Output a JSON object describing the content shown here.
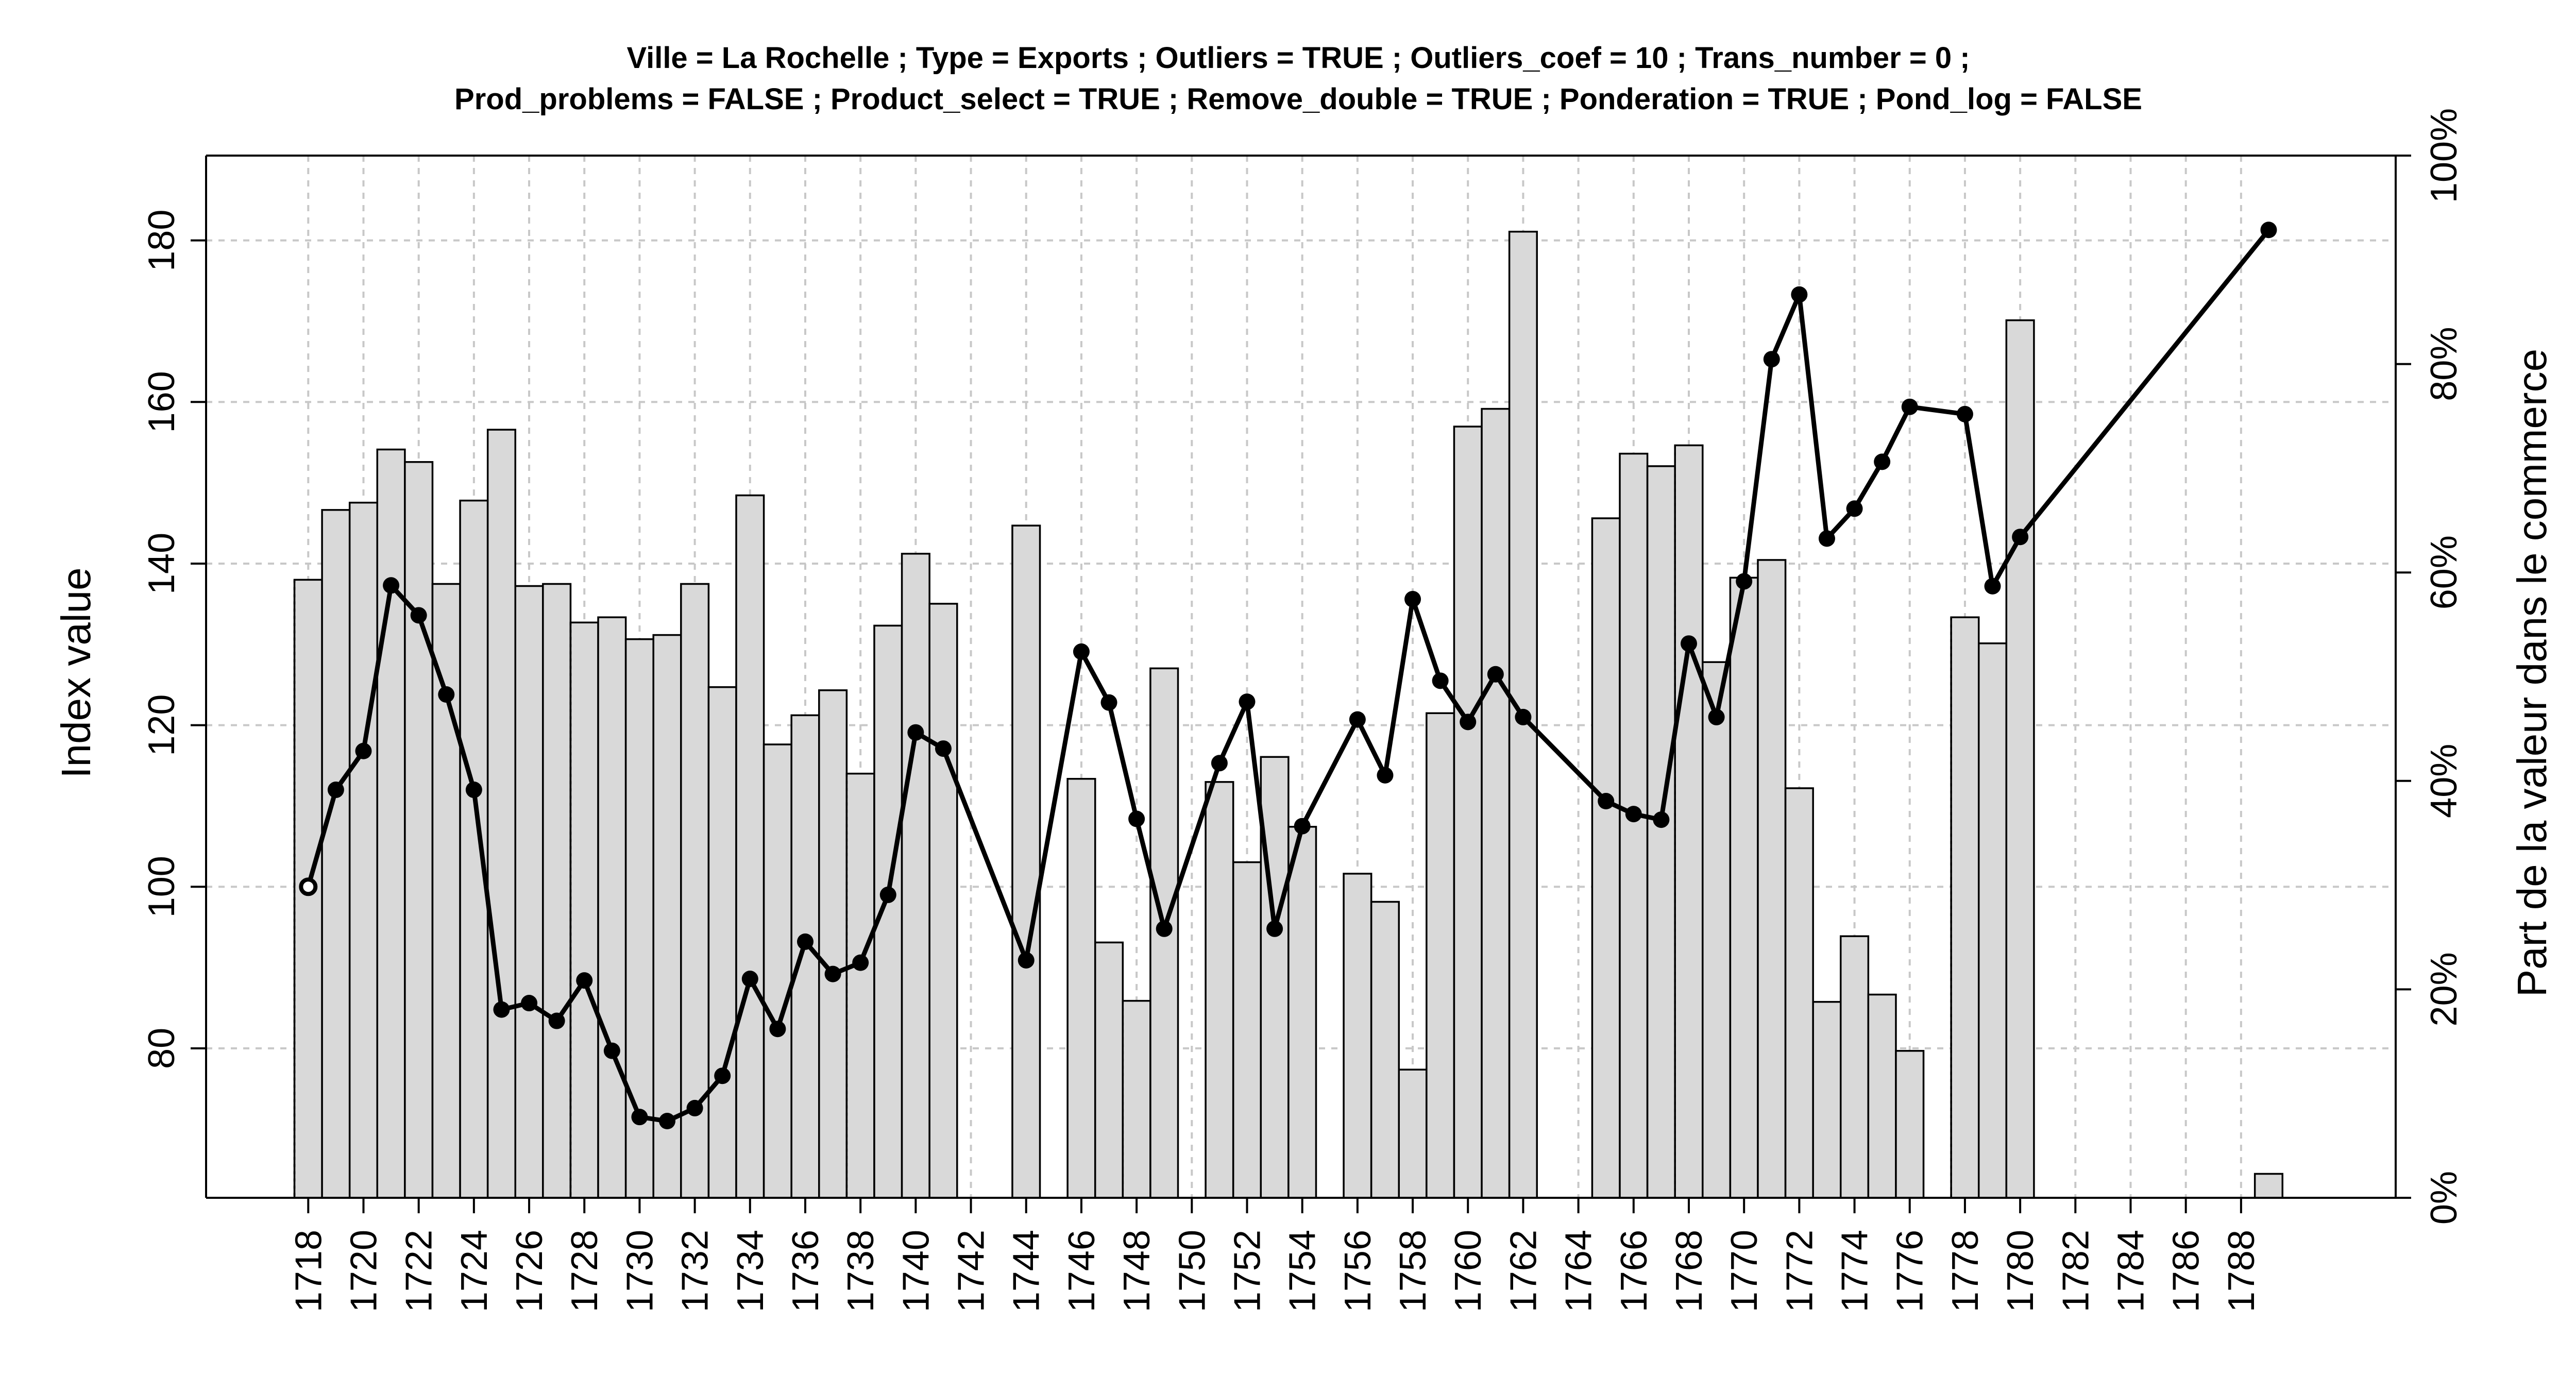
{
  "chart_data": {
    "type": "bar",
    "title_line1": "Ville = La Rochelle ; Type = Exports ; Outliers = TRUE ; Outliers_coef = 10 ; Trans_number = 0 ;",
    "title_line2": "Prod_problems = FALSE ; Product_select = TRUE ; Remove_double = TRUE ; Ponderation = TRUE ; Pond_log = FALSE",
    "xlabel": "",
    "ylabel": "Index value",
    "y2label": "Part de la valeur dans le commerce",
    "ylim": [
      61.5,
      190.5
    ],
    "y2lim": [
      0,
      100
    ],
    "xlim": [
      1714.3,
      1793.6
    ],
    "yticks": [
      80,
      100,
      120,
      140,
      160,
      180
    ],
    "y2ticks": [
      "0%",
      "20%",
      "40%",
      "60%",
      "80%",
      "100%"
    ],
    "xticks": [
      "1718",
      "1720",
      "1722",
      "1724",
      "1726",
      "1728",
      "1730",
      "1732",
      "1734",
      "1736",
      "1738",
      "1740",
      "1742",
      "1744",
      "1746",
      "1748",
      "1750",
      "1752",
      "1754",
      "1756",
      "1758",
      "1760",
      "1762",
      "1764",
      "1766",
      "1768",
      "1770",
      "1772",
      "1774",
      "1776",
      "1778",
      "1780",
      "1782",
      "1784",
      "1786",
      "1788"
    ],
    "grid": true,
    "series": [
      {
        "axis": "right",
        "style": "bar",
        "unit": "%",
        "points": [
          {
            "year": 1718,
            "value": 59.3
          },
          {
            "year": 1719,
            "value": 66.0
          },
          {
            "year": 1720,
            "value": 66.7
          },
          {
            "year": 1721,
            "value": 71.8
          },
          {
            "year": 1722,
            "value": 70.6
          },
          {
            "year": 1723,
            "value": 58.9
          },
          {
            "year": 1724,
            "value": 66.9
          },
          {
            "year": 1725,
            "value": 73.7
          },
          {
            "year": 1726,
            "value": 58.7
          },
          {
            "year": 1727,
            "value": 58.9
          },
          {
            "year": 1728,
            "value": 55.2
          },
          {
            "year": 1729,
            "value": 55.7
          },
          {
            "year": 1730,
            "value": 53.6
          },
          {
            "year": 1731,
            "value": 54.0
          },
          {
            "year": 1732,
            "value": 58.9
          },
          {
            "year": 1733,
            "value": 49.0
          },
          {
            "year": 1734,
            "value": 67.4
          },
          {
            "year": 1735,
            "value": 43.5
          },
          {
            "year": 1736,
            "value": 46.3
          },
          {
            "year": 1737,
            "value": 48.7
          },
          {
            "year": 1738,
            "value": 40.7
          },
          {
            "year": 1739,
            "value": 54.9
          },
          {
            "year": 1740,
            "value": 61.8
          },
          {
            "year": 1741,
            "value": 57.0
          },
          {
            "year": 1744,
            "value": 64.5
          },
          {
            "year": 1746,
            "value": 40.2
          },
          {
            "year": 1747,
            "value": 24.5
          },
          {
            "year": 1748,
            "value": 18.9
          },
          {
            "year": 1749,
            "value": 50.8
          },
          {
            "year": 1751,
            "value": 39.9
          },
          {
            "year": 1752,
            "value": 32.2
          },
          {
            "year": 1753,
            "value": 42.3
          },
          {
            "year": 1754,
            "value": 35.6
          },
          {
            "year": 1756,
            "value": 31.1
          },
          {
            "year": 1757,
            "value": 28.4
          },
          {
            "year": 1758,
            "value": 12.3
          },
          {
            "year": 1759,
            "value": 46.5
          },
          {
            "year": 1760,
            "value": 74.0
          },
          {
            "year": 1761,
            "value": 75.7
          },
          {
            "year": 1762,
            "value": 92.7
          },
          {
            "year": 1765,
            "value": 65.2
          },
          {
            "year": 1766,
            "value": 71.4
          },
          {
            "year": 1767,
            "value": 70.2
          },
          {
            "year": 1768,
            "value": 72.2
          },
          {
            "year": 1769,
            "value": 51.4
          },
          {
            "year": 1770,
            "value": 59.5
          },
          {
            "year": 1771,
            "value": 61.2
          },
          {
            "year": 1772,
            "value": 39.3
          },
          {
            "year": 1773,
            "value": 18.8
          },
          {
            "year": 1774,
            "value": 25.1
          },
          {
            "year": 1775,
            "value": 19.5
          },
          {
            "year": 1776,
            "value": 14.1
          },
          {
            "year": 1778,
            "value": 55.7
          },
          {
            "year": 1779,
            "value": 53.2
          },
          {
            "year": 1780,
            "value": 84.2
          },
          {
            "year": 1789,
            "value": 2.3
          }
        ]
      },
      {
        "axis": "left",
        "style": "line",
        "points": [
          {
            "year": 1718,
            "value": 100.0
          },
          {
            "year": 1719,
            "value": 112.0
          },
          {
            "year": 1720,
            "value": 116.8
          },
          {
            "year": 1721,
            "value": 137.3
          },
          {
            "year": 1722,
            "value": 133.6
          },
          {
            "year": 1723,
            "value": 123.8
          },
          {
            "year": 1724,
            "value": 112.0
          },
          {
            "year": 1725,
            "value": 84.8
          },
          {
            "year": 1726,
            "value": 85.6
          },
          {
            "year": 1727,
            "value": 83.4
          },
          {
            "year": 1728,
            "value": 88.4
          },
          {
            "year": 1729,
            "value": 79.7
          },
          {
            "year": 1730,
            "value": 71.5
          },
          {
            "year": 1731,
            "value": 71.0
          },
          {
            "year": 1732,
            "value": 72.6
          },
          {
            "year": 1733,
            "value": 76.6
          },
          {
            "year": 1734,
            "value": 88.6
          },
          {
            "year": 1735,
            "value": 82.4
          },
          {
            "year": 1736,
            "value": 93.2
          },
          {
            "year": 1737,
            "value": 89.2
          },
          {
            "year": 1738,
            "value": 90.6
          },
          {
            "year": 1739,
            "value": 99.0
          },
          {
            "year": 1740,
            "value": 119.1
          },
          {
            "year": 1741,
            "value": 117.1
          },
          {
            "year": 1744,
            "value": 90.9
          },
          {
            "year": 1746,
            "value": 129.1
          },
          {
            "year": 1747,
            "value": 122.8
          },
          {
            "year": 1748,
            "value": 108.4
          },
          {
            "year": 1749,
            "value": 94.8
          },
          {
            "year": 1751,
            "value": 115.3
          },
          {
            "year": 1752,
            "value": 122.9
          },
          {
            "year": 1753,
            "value": 94.8
          },
          {
            "year": 1754,
            "value": 107.5
          },
          {
            "year": 1756,
            "value": 120.7
          },
          {
            "year": 1757,
            "value": 113.8
          },
          {
            "year": 1758,
            "value": 135.6
          },
          {
            "year": 1759,
            "value": 125.5
          },
          {
            "year": 1760,
            "value": 120.4
          },
          {
            "year": 1761,
            "value": 126.3
          },
          {
            "year": 1762,
            "value": 121.0
          },
          {
            "year": 1765,
            "value": 110.6
          },
          {
            "year": 1766,
            "value": 109.0
          },
          {
            "year": 1767,
            "value": 108.3
          },
          {
            "year": 1768,
            "value": 130.1
          },
          {
            "year": 1769,
            "value": 121.0
          },
          {
            "year": 1770,
            "value": 137.8
          },
          {
            "year": 1771,
            "value": 165.3
          },
          {
            "year": 1772,
            "value": 173.3
          },
          {
            "year": 1773,
            "value": 143.1
          },
          {
            "year": 1774,
            "value": 146.8
          },
          {
            "year": 1775,
            "value": 152.6
          },
          {
            "year": 1776,
            "value": 159.4
          },
          {
            "year": 1778,
            "value": 158.5
          },
          {
            "year": 1779,
            "value": 137.2
          },
          {
            "year": 1780,
            "value": 143.3
          },
          {
            "year": 1789,
            "value": 181.3
          }
        ]
      }
    ]
  }
}
